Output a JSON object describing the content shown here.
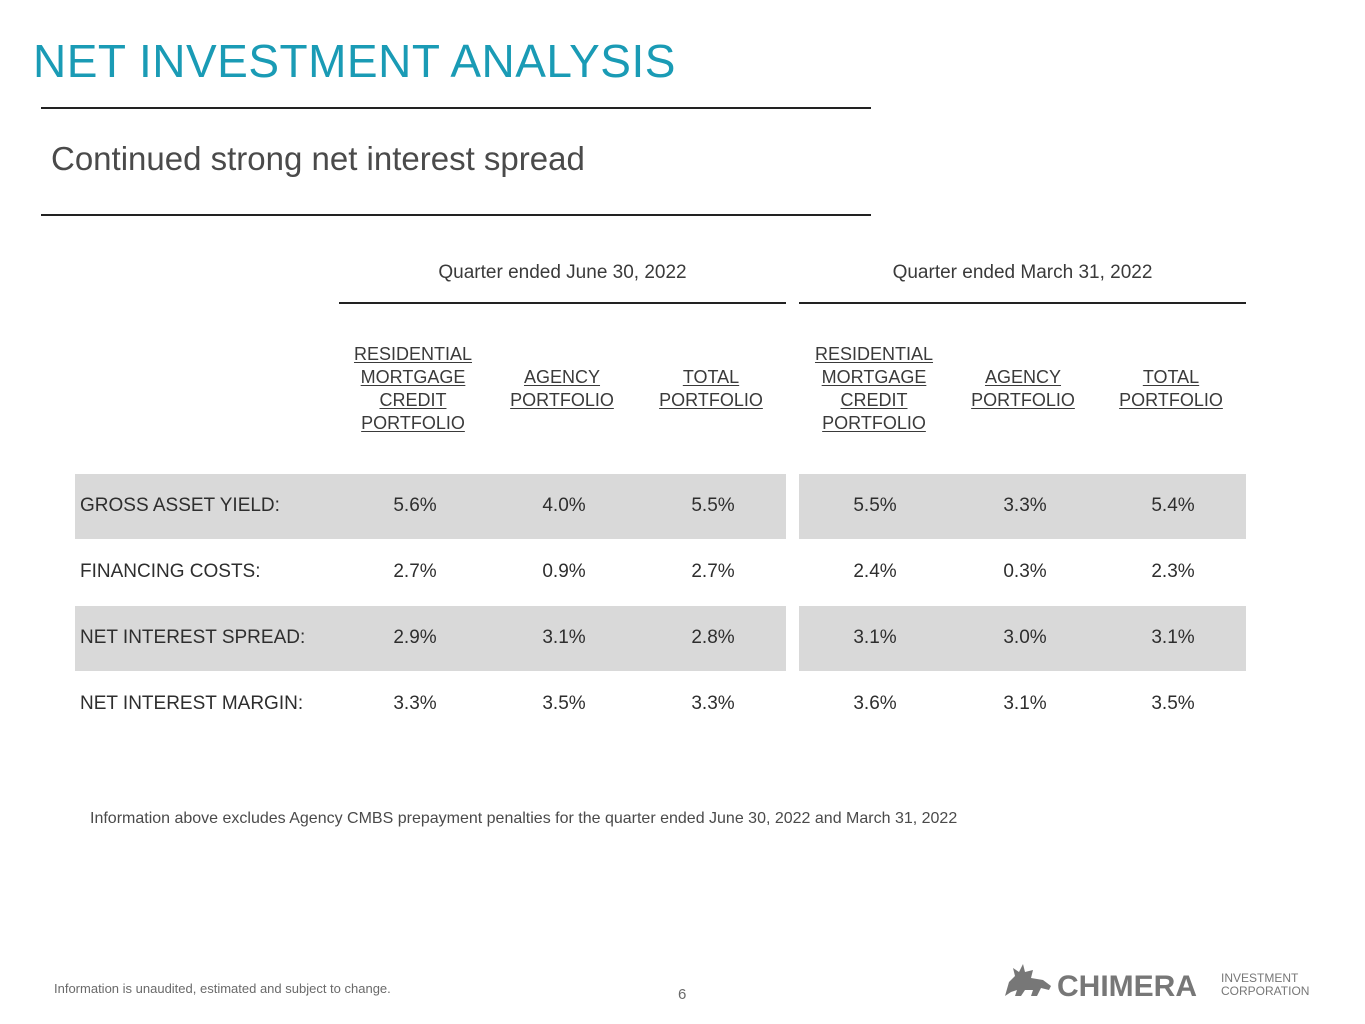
{
  "title": "NET INVESTMENT ANALYSIS",
  "subtitle": "Continued strong net interest spread",
  "periods": [
    {
      "label": "Quarter ended June 30, 2022",
      "columns": [
        [
          "RESIDENTIAL",
          "MORTGAGE",
          "CREDIT",
          "PORTFOLIO"
        ],
        [
          "AGENCY",
          "PORTFOLIO"
        ],
        [
          "TOTAL",
          "PORTFOLIO"
        ]
      ]
    },
    {
      "label": "Quarter ended March 31, 2022",
      "columns": [
        [
          "RESIDENTIAL",
          "MORTGAGE",
          "CREDIT",
          "PORTFOLIO"
        ],
        [
          "AGENCY",
          "PORTFOLIO"
        ],
        [
          "TOTAL",
          "PORTFOLIO"
        ]
      ]
    }
  ],
  "rows": [
    {
      "label": "GROSS ASSET YIELD:",
      "values": [
        "5.6%",
        "4.0%",
        "5.5%",
        "5.5%",
        "3.3%",
        "5.4%"
      ]
    },
    {
      "label": "FINANCING COSTS:",
      "values": [
        "2.7%",
        "0.9%",
        "2.7%",
        "2.4%",
        "0.3%",
        "2.3%"
      ]
    },
    {
      "label": "NET INTEREST SPREAD:",
      "values": [
        "2.9%",
        "3.1%",
        "2.8%",
        "3.1%",
        "3.0%",
        "3.1%"
      ]
    },
    {
      "label": "NET INTEREST MARGIN:",
      "values": [
        "3.3%",
        "3.5%",
        "3.3%",
        "3.6%",
        "3.1%",
        "3.5%"
      ]
    }
  ],
  "footnote": "Information above excludes Agency CMBS prepayment penalties for the quarter ended June 30, 2022 and March 31, 2022",
  "disclaimer": "Information is unaudited, estimated and subject to change.",
  "page_number": "6",
  "logo": {
    "name": "CHIMERA",
    "line1": "INVESTMENT",
    "line2": "CORPORATION",
    "icon": "chimera-creature-icon"
  },
  "colors": {
    "title": "#1a9bb5",
    "band": "#d9d9d9",
    "logo": "#777777"
  }
}
